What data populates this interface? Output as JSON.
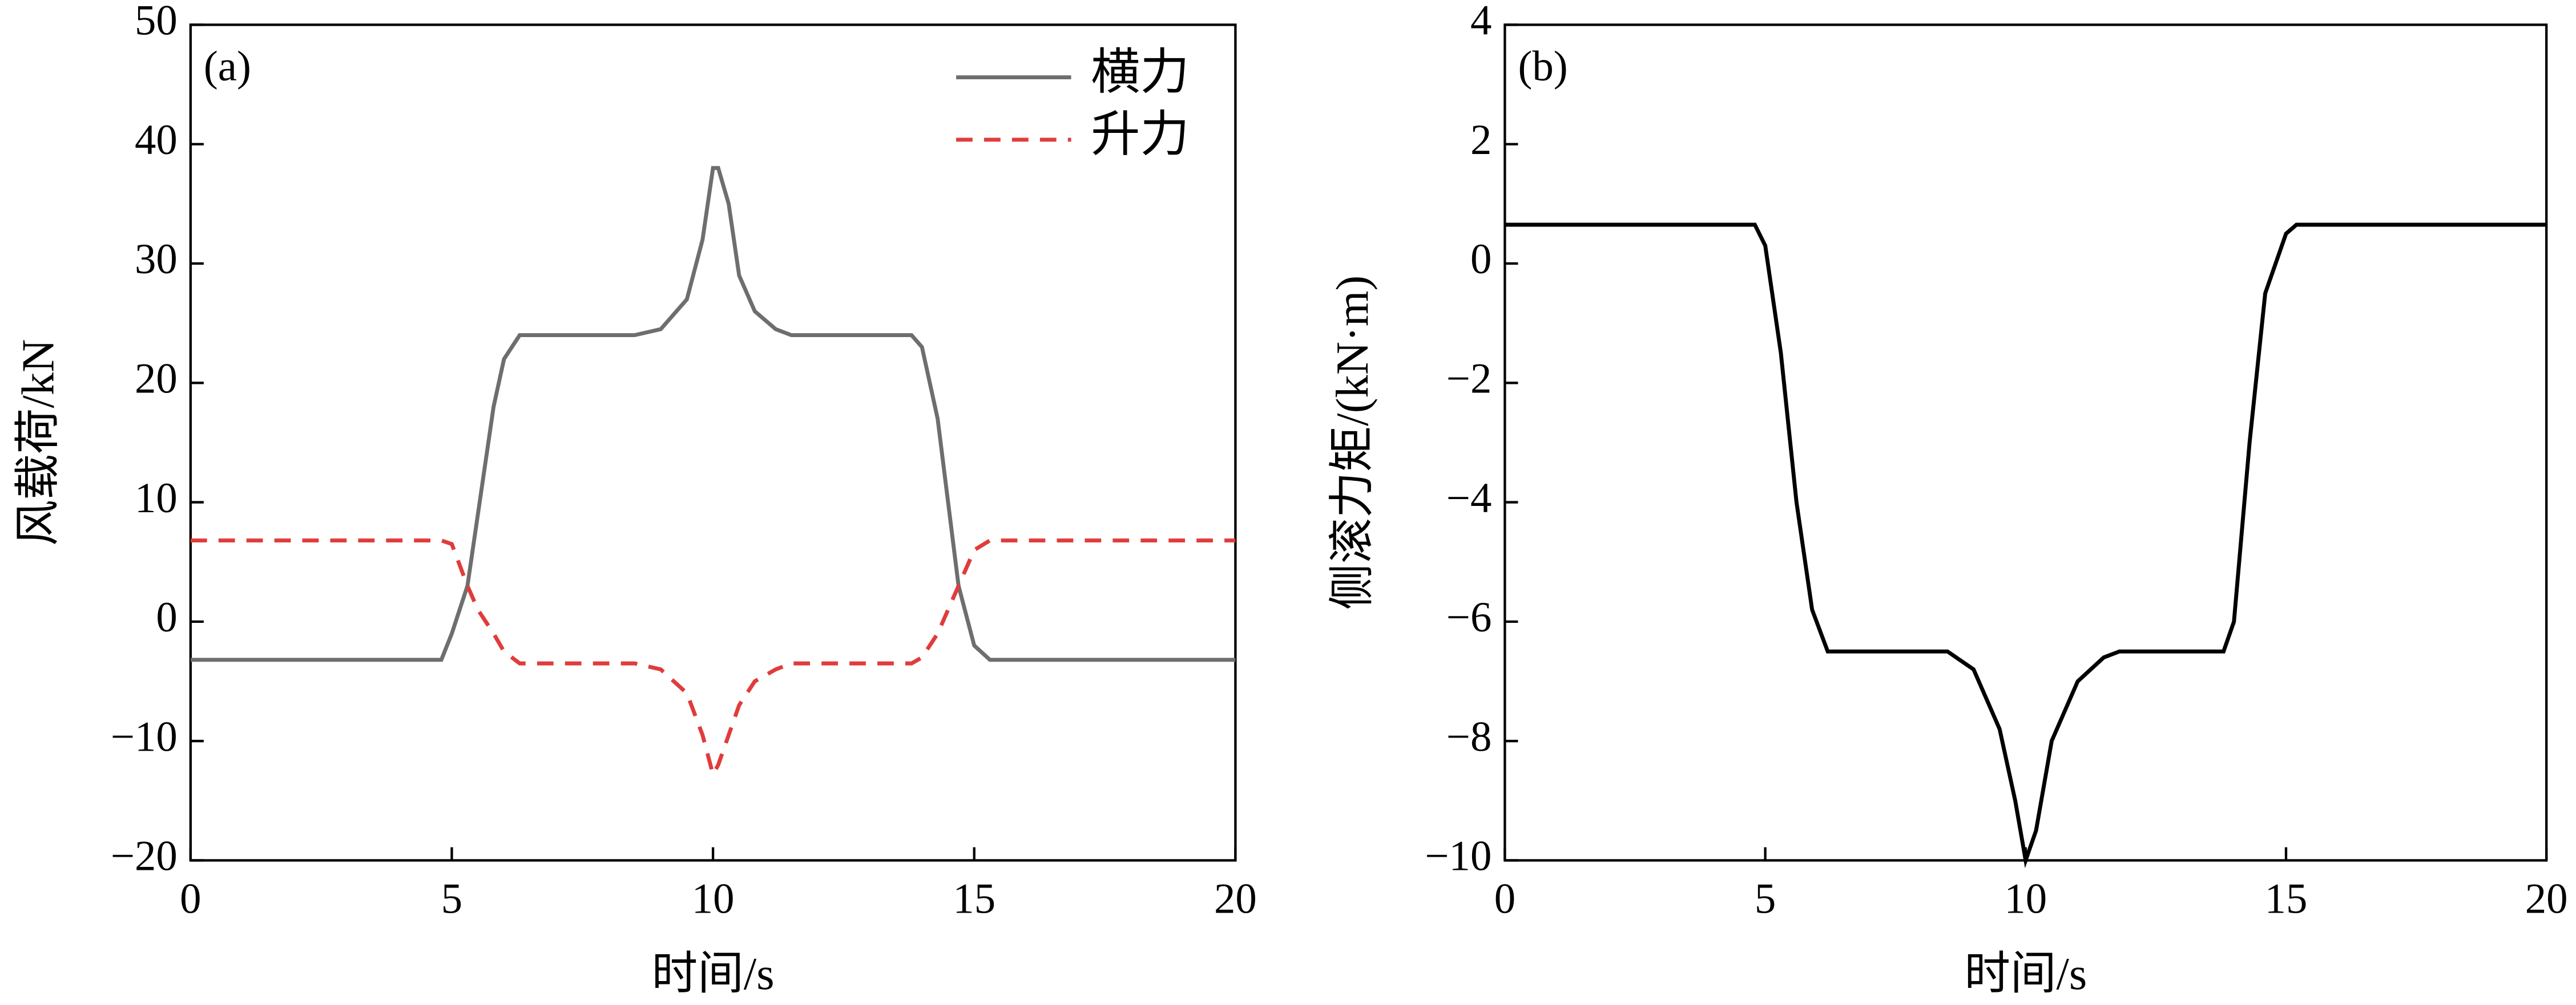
{
  "chart_data": [
    {
      "type": "line",
      "annotation": "(a)",
      "xlabel": "时间/s",
      "ylabel": "风载荷/kN",
      "xlim": [
        0,
        20
      ],
      "xticks": [
        0,
        5,
        10,
        15,
        20
      ],
      "ylim": [
        -20,
        50
      ],
      "yticks": [
        {
          "value": -20,
          "label": "−20"
        },
        {
          "value": -10,
          "label": "−10"
        },
        0,
        10,
        20,
        30,
        40,
        50
      ],
      "legend": "upper right",
      "x": [
        0,
        4.8,
        5.0,
        5.3,
        5.5,
        5.8,
        6.0,
        6.3,
        8.5,
        9.0,
        9.5,
        9.8,
        10.0,
        10.1,
        10.3,
        10.5,
        10.8,
        11.2,
        11.5,
        13.8,
        14.0,
        14.3,
        14.5,
        14.7,
        15.0,
        15.3,
        20
      ],
      "series": [
        {
          "name": "横力",
          "color": "#6e6e6e",
          "linestyle": "solid",
          "values": [
            -3.2,
            -3.2,
            -1,
            3,
            9,
            18,
            22,
            24,
            24,
            24.5,
            27,
            32,
            38,
            38,
            35,
            29,
            26,
            24.5,
            24,
            24,
            23,
            17,
            10,
            3,
            -2,
            -3.2,
            -3.2
          ]
        },
        {
          "name": "升力",
          "color": "#e03c3c",
          "linestyle": "dashed",
          "values": [
            6.8,
            6.8,
            6.5,
            3,
            1,
            -1,
            -2.5,
            -3.5,
            -3.5,
            -4,
            -6,
            -9.5,
            -12.8,
            -12,
            -9.5,
            -7,
            -5,
            -4,
            -3.5,
            -3.5,
            -3,
            -1,
            1,
            3,
            6,
            6.8,
            6.8
          ]
        }
      ]
    },
    {
      "type": "line",
      "annotation": "(b)",
      "xlabel": "时间/s",
      "ylabel": "侧滚力矩/(kN·m)",
      "xlim": [
        0,
        20
      ],
      "xticks": [
        0,
        5,
        10,
        15,
        20
      ],
      "ylim": [
        -10,
        4
      ],
      "yticks": [
        {
          "value": -10,
          "label": "−10"
        },
        {
          "value": -8,
          "label": "−8"
        },
        {
          "value": -6,
          "label": "−6"
        },
        {
          "value": -4,
          "label": "−4"
        },
        {
          "value": -2,
          "label": "−2"
        },
        0,
        2,
        4
      ],
      "x": [
        0,
        4.8,
        5.0,
        5.3,
        5.6,
        5.9,
        6.2,
        8.5,
        9.0,
        9.5,
        9.8,
        10.0,
        10.2,
        10.5,
        11.0,
        11.5,
        11.8,
        13.8,
        14.0,
        14.3,
        14.6,
        15.0,
        15.2,
        20
      ],
      "values": [
        0.65,
        0.65,
        0.3,
        -1.5,
        -4,
        -5.8,
        -6.5,
        -6.5,
        -6.8,
        -7.8,
        -9,
        -10,
        -9.5,
        -8,
        -7,
        -6.6,
        -6.5,
        -6.5,
        -6,
        -3,
        -0.5,
        0.5,
        0.65,
        0.65
      ],
      "color": "#000000",
      "linestyle": "solid"
    }
  ]
}
